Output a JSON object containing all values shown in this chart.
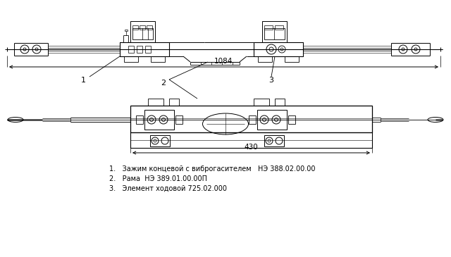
{
  "bg_color": "#ffffff",
  "line_color": "#000000",
  "dimension_1084": "1084",
  "dimension_430": "430",
  "label_1": "1",
  "label_2": "2",
  "label_3": "3",
  "legend_1": "1.   Зажим концевой с виброгасителем   НЭ 388.02.00.00",
  "legend_2": "2.   Рама  НЭ 389.01.00.00П",
  "legend_3": "3.   Элемент ходовой 725.02.000",
  "fig_width": 6.4,
  "fig_height": 3.65,
  "dpi": 100
}
